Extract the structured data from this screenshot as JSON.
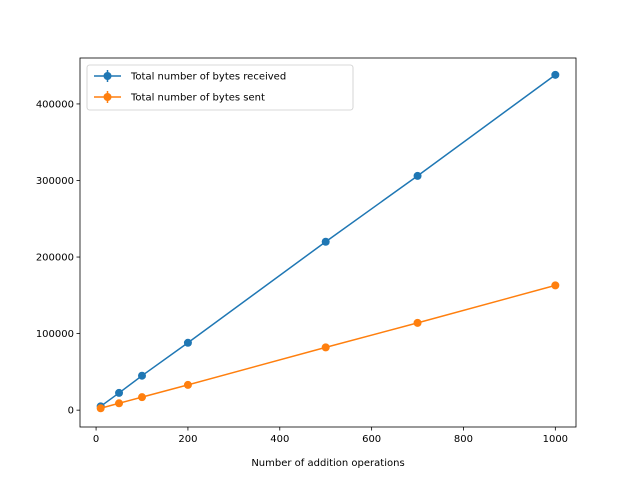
{
  "chart_data": {
    "type": "line",
    "title": "",
    "xlabel": "Number of addition operations",
    "ylabel": "",
    "xlim": [
      -35,
      1045
    ],
    "ylim": [
      -22000,
      460000
    ],
    "xticks": [
      0,
      200,
      400,
      600,
      800,
      1000
    ],
    "yticks": [
      0,
      100000,
      200000,
      300000,
      400000
    ],
    "grid": false,
    "legend_position": "top-left",
    "series": [
      {
        "name": "Total number of bytes received",
        "color": "#1f77b4",
        "marker": "circle",
        "error_bars": true,
        "x": [
          10,
          50,
          100,
          200,
          500,
          700,
          1000
        ],
        "y": [
          5000,
          22500,
          45000,
          88000,
          220000,
          306000,
          438000
        ]
      },
      {
        "name": "Total number of bytes sent",
        "color": "#ff7f0e",
        "marker": "circle",
        "error_bars": true,
        "x": [
          10,
          50,
          100,
          200,
          500,
          700,
          1000
        ],
        "y": [
          2500,
          9000,
          17000,
          33000,
          82000,
          114000,
          163000
        ]
      }
    ]
  }
}
